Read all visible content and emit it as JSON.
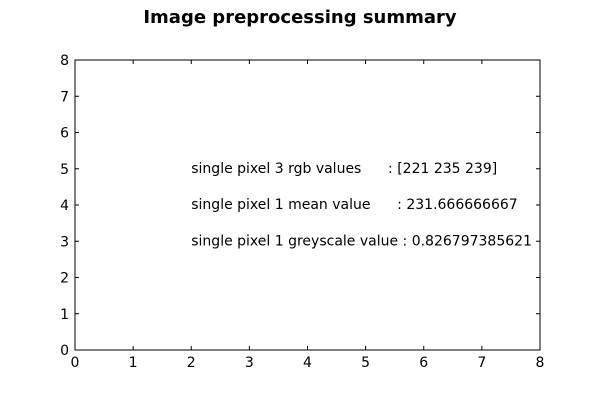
{
  "chart_data": {
    "type": "scatter",
    "title": "Image preprocessing  summary",
    "xlabel": "",
    "ylabel": "",
    "xlim": [
      0,
      8
    ],
    "ylim": [
      0,
      8
    ],
    "x_ticks": [
      "0",
      "1",
      "2",
      "3",
      "4",
      "5",
      "6",
      "7",
      "8"
    ],
    "y_ticks": [
      "0",
      "1",
      "2",
      "3",
      "4",
      "5",
      "6",
      "7",
      "8"
    ],
    "grid": false,
    "series": [],
    "annotations": [
      {
        "x": 2,
        "y": 5,
        "text": "single pixel 3 rgb values      : [221 235 239]"
      },
      {
        "x": 2,
        "y": 4,
        "text": "single pixel 1 mean value      : 231.666666667"
      },
      {
        "x": 2,
        "y": 3,
        "text": "single pixel 1 greyscale value : 0.826797385621"
      }
    ]
  }
}
